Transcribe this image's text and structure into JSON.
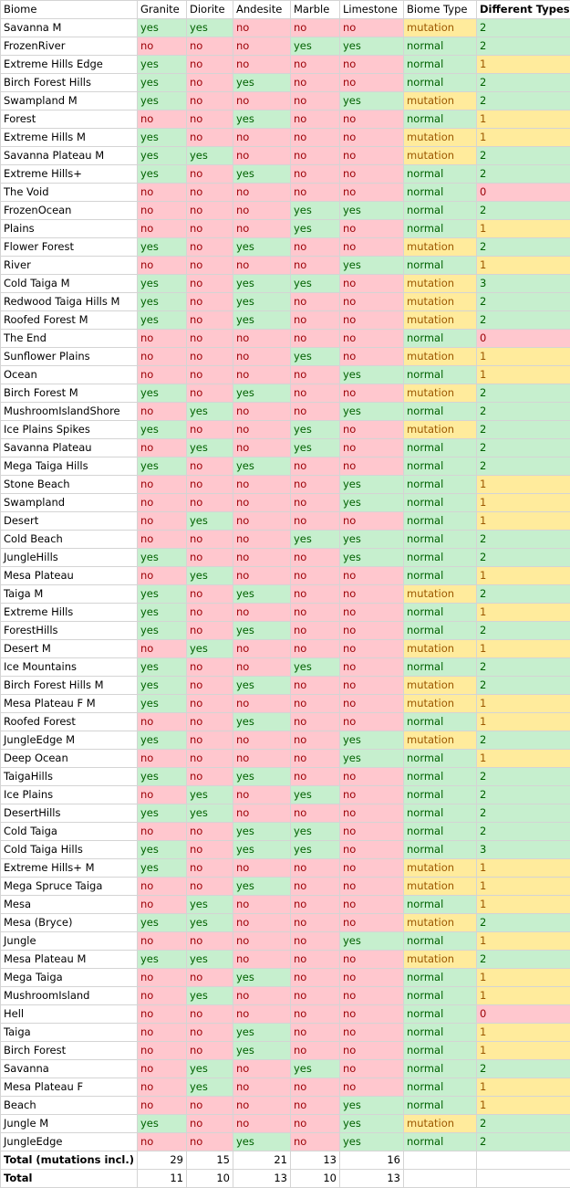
{
  "headers": [
    "Biome",
    "Granite",
    "Diorite",
    "Andesite",
    "Marble",
    "Limestone",
    "Biome Type",
    "Different Types"
  ],
  "rows": [
    [
      "Savanna M",
      "yes",
      "yes",
      "no",
      "no",
      "no",
      "mutation",
      "2"
    ],
    [
      "FrozenRiver",
      "no",
      "no",
      "no",
      "yes",
      "yes",
      "normal",
      "2"
    ],
    [
      "Extreme Hills Edge",
      "yes",
      "no",
      "no",
      "no",
      "no",
      "normal",
      "1"
    ],
    [
      "Birch Forest Hills",
      "yes",
      "no",
      "yes",
      "no",
      "no",
      "normal",
      "2"
    ],
    [
      "Swampland M",
      "yes",
      "no",
      "no",
      "no",
      "yes",
      "mutation",
      "2"
    ],
    [
      "Forest",
      "no",
      "no",
      "yes",
      "no",
      "no",
      "normal",
      "1"
    ],
    [
      "Extreme Hills M",
      "yes",
      "no",
      "no",
      "no",
      "no",
      "mutation",
      "1"
    ],
    [
      "Savanna Plateau M",
      "yes",
      "yes",
      "no",
      "no",
      "no",
      "mutation",
      "2"
    ],
    [
      "Extreme Hills+",
      "yes",
      "no",
      "yes",
      "no",
      "no",
      "normal",
      "2"
    ],
    [
      "The Void",
      "no",
      "no",
      "no",
      "no",
      "no",
      "normal",
      "0"
    ],
    [
      "FrozenOcean",
      "no",
      "no",
      "no",
      "yes",
      "yes",
      "normal",
      "2"
    ],
    [
      "Plains",
      "no",
      "no",
      "no",
      "yes",
      "no",
      "normal",
      "1"
    ],
    [
      "Flower Forest",
      "yes",
      "no",
      "yes",
      "no",
      "no",
      "mutation",
      "2"
    ],
    [
      "River",
      "no",
      "no",
      "no",
      "no",
      "yes",
      "normal",
      "1"
    ],
    [
      "Cold Taiga M",
      "yes",
      "no",
      "yes",
      "yes",
      "no",
      "mutation",
      "3"
    ],
    [
      "Redwood Taiga Hills M",
      "yes",
      "no",
      "yes",
      "no",
      "no",
      "mutation",
      "2"
    ],
    [
      "Roofed Forest M",
      "yes",
      "no",
      "yes",
      "no",
      "no",
      "mutation",
      "2"
    ],
    [
      "The End",
      "no",
      "no",
      "no",
      "no",
      "no",
      "normal",
      "0"
    ],
    [
      "Sunflower Plains",
      "no",
      "no",
      "no",
      "yes",
      "no",
      "mutation",
      "1"
    ],
    [
      "Ocean",
      "no",
      "no",
      "no",
      "no",
      "yes",
      "normal",
      "1"
    ],
    [
      "Birch Forest M",
      "yes",
      "no",
      "yes",
      "no",
      "no",
      "mutation",
      "2"
    ],
    [
      "MushroomIslandShore",
      "no",
      "yes",
      "no",
      "no",
      "yes",
      "normal",
      "2"
    ],
    [
      "Ice Plains Spikes",
      "yes",
      "no",
      "no",
      "yes",
      "no",
      "mutation",
      "2"
    ],
    [
      "Savanna Plateau",
      "no",
      "yes",
      "no",
      "yes",
      "no",
      "normal",
      "2"
    ],
    [
      "Mega Taiga Hills",
      "yes",
      "no",
      "yes",
      "no",
      "no",
      "normal",
      "2"
    ],
    [
      "Stone Beach",
      "no",
      "no",
      "no",
      "no",
      "yes",
      "normal",
      "1"
    ],
    [
      "Swampland",
      "no",
      "no",
      "no",
      "no",
      "yes",
      "normal",
      "1"
    ],
    [
      "Desert",
      "no",
      "yes",
      "no",
      "no",
      "no",
      "normal",
      "1"
    ],
    [
      "Cold Beach",
      "no",
      "no",
      "no",
      "yes",
      "yes",
      "normal",
      "2"
    ],
    [
      "JungleHills",
      "yes",
      "no",
      "no",
      "no",
      "yes",
      "normal",
      "2"
    ],
    [
      "Mesa Plateau",
      "no",
      "yes",
      "no",
      "no",
      "no",
      "normal",
      "1"
    ],
    [
      "Taiga M",
      "yes",
      "no",
      "yes",
      "no",
      "no",
      "mutation",
      "2"
    ],
    [
      "Extreme Hills",
      "yes",
      "no",
      "no",
      "no",
      "no",
      "normal",
      "1"
    ],
    [
      "ForestHills",
      "yes",
      "no",
      "yes",
      "no",
      "no",
      "normal",
      "2"
    ],
    [
      "Desert M",
      "no",
      "yes",
      "no",
      "no",
      "no",
      "mutation",
      "1"
    ],
    [
      "Ice Mountains",
      "yes",
      "no",
      "no",
      "yes",
      "no",
      "normal",
      "2"
    ],
    [
      "Birch Forest Hills M",
      "yes",
      "no",
      "yes",
      "no",
      "no",
      "mutation",
      "2"
    ],
    [
      "Mesa Plateau F M",
      "yes",
      "no",
      "no",
      "no",
      "no",
      "mutation",
      "1"
    ],
    [
      "Roofed Forest",
      "no",
      "no",
      "yes",
      "no",
      "no",
      "normal",
      "1"
    ],
    [
      "JungleEdge M",
      "yes",
      "no",
      "no",
      "no",
      "yes",
      "mutation",
      "2"
    ],
    [
      "Deep Ocean",
      "no",
      "no",
      "no",
      "no",
      "yes",
      "normal",
      "1"
    ],
    [
      "TaigaHills",
      "yes",
      "no",
      "yes",
      "no",
      "no",
      "normal",
      "2"
    ],
    [
      "Ice Plains",
      "no",
      "yes",
      "no",
      "yes",
      "no",
      "normal",
      "2"
    ],
    [
      "DesertHills",
      "yes",
      "yes",
      "no",
      "no",
      "no",
      "normal",
      "2"
    ],
    [
      "Cold Taiga",
      "no",
      "no",
      "yes",
      "yes",
      "no",
      "normal",
      "2"
    ],
    [
      "Cold Taiga Hills",
      "yes",
      "no",
      "yes",
      "yes",
      "no",
      "normal",
      "3"
    ],
    [
      "Extreme Hills+ M",
      "yes",
      "no",
      "no",
      "no",
      "no",
      "mutation",
      "1"
    ],
    [
      "Mega Spruce Taiga",
      "no",
      "no",
      "yes",
      "no",
      "no",
      "mutation",
      "1"
    ],
    [
      "Mesa",
      "no",
      "yes",
      "no",
      "no",
      "no",
      "normal",
      "1"
    ],
    [
      "Mesa (Bryce)",
      "yes",
      "yes",
      "no",
      "no",
      "no",
      "mutation",
      "2"
    ],
    [
      "Jungle",
      "no",
      "no",
      "no",
      "no",
      "yes",
      "normal",
      "1"
    ],
    [
      "Mesa Plateau M",
      "yes",
      "yes",
      "no",
      "no",
      "no",
      "mutation",
      "2"
    ],
    [
      "Mega Taiga",
      "no",
      "no",
      "yes",
      "no",
      "no",
      "normal",
      "1"
    ],
    [
      "MushroomIsland",
      "no",
      "yes",
      "no",
      "no",
      "no",
      "normal",
      "1"
    ],
    [
      "Hell",
      "no",
      "no",
      "no",
      "no",
      "no",
      "normal",
      "0"
    ],
    [
      "Taiga",
      "no",
      "no",
      "yes",
      "no",
      "no",
      "normal",
      "1"
    ],
    [
      "Birch Forest",
      "no",
      "no",
      "yes",
      "no",
      "no",
      "normal",
      "1"
    ],
    [
      "Savanna",
      "no",
      "yes",
      "no",
      "yes",
      "no",
      "normal",
      "2"
    ],
    [
      "Mesa Plateau F",
      "no",
      "yes",
      "no",
      "no",
      "no",
      "normal",
      "1"
    ],
    [
      "Beach",
      "no",
      "no",
      "no",
      "no",
      "yes",
      "normal",
      "1"
    ],
    [
      "Jungle M",
      "yes",
      "no",
      "no",
      "no",
      "yes",
      "mutation",
      "2"
    ],
    [
      "JungleEdge",
      "no",
      "no",
      "yes",
      "no",
      "yes",
      "normal",
      "2"
    ]
  ],
  "totals": [
    {
      "label": "Total (mutations incl.)",
      "values": [
        "29",
        "15",
        "21",
        "13",
        "16"
      ]
    },
    {
      "label": "Total",
      "values": [
        "11",
        "10",
        "13",
        "10",
        "13"
      ]
    }
  ],
  "colors": {
    "good_bg": "#c6efce",
    "good_text": "#006100",
    "bad_bg": "#ffc7ce",
    "bad_text": "#9c0006",
    "neutral_bg": "#ffeb9c",
    "neutral_text": "#9c5700",
    "gridline": "#d4d4d4"
  }
}
